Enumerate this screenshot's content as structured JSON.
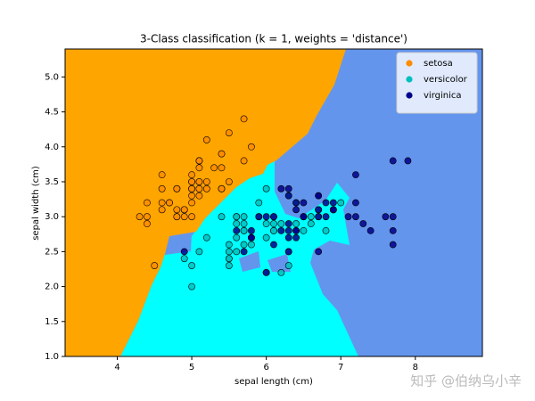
{
  "chart_data": {
    "type": "scatter",
    "title": "3-Class classification (k = 1, weights = 'distance')",
    "x_label": "sepal length (cm)",
    "y_label": "sepal width (cm)",
    "xlim": [
      3.3,
      8.9
    ],
    "ylim": [
      1.0,
      5.4
    ],
    "xticks": [
      4,
      5,
      6,
      7,
      8
    ],
    "yticks": [
      {
        "value": 1,
        "label": "1.0"
      },
      {
        "value": 1.5,
        "label": "1.5"
      },
      {
        "value": 2,
        "label": "2.0"
      },
      {
        "value": 2.5,
        "label": "2.5"
      },
      {
        "value": 3,
        "label": "3.0"
      },
      {
        "value": 3.5,
        "label": "3.5"
      },
      {
        "value": 4,
        "label": "4.0"
      },
      {
        "value": 4.5,
        "label": "4.5"
      },
      {
        "value": 5,
        "label": "5.0"
      }
    ],
    "grid": false,
    "legend": "upper right",
    "watermark": "知乎 @伯纳乌小辛",
    "series": [
      {
        "name": "setosa",
        "color": "#ff8c00",
        "x": [
          5.1,
          4.9,
          4.7,
          4.6,
          5.0,
          5.4,
          4.6,
          5.0,
          4.4,
          4.9,
          5.4,
          4.8,
          4.8,
          4.3,
          5.8,
          5.7,
          5.4,
          5.1,
          5.7,
          5.1,
          5.4,
          5.1,
          4.6,
          5.1,
          4.8,
          5.0,
          5.0,
          5.2,
          5.2,
          4.7,
          4.8,
          5.4,
          5.2,
          5.5,
          4.9,
          5.0,
          5.5,
          4.9,
          4.4,
          5.1,
          5.0,
          4.5,
          4.4,
          5.0,
          5.1,
          4.8,
          5.1,
          4.6,
          5.3,
          5.0
        ],
        "values": [
          3.5,
          3.0,
          3.2,
          3.1,
          3.6,
          3.9,
          3.4,
          3.4,
          2.9,
          3.1,
          3.7,
          3.4,
          3.0,
          3.0,
          4.0,
          4.4,
          3.9,
          3.5,
          3.8,
          3.8,
          3.4,
          3.7,
          3.6,
          3.3,
          3.4,
          3.0,
          3.4,
          3.5,
          3.4,
          3.2,
          3.1,
          3.4,
          4.1,
          4.2,
          3.1,
          3.2,
          3.5,
          3.1,
          3.0,
          3.4,
          3.5,
          2.3,
          3.2,
          3.5,
          3.8,
          3.0,
          3.8,
          3.2,
          3.7,
          3.3
        ]
      },
      {
        "name": "versicolor",
        "color": "#00bfbf",
        "x": [
          7.0,
          6.4,
          6.9,
          5.5,
          6.5,
          5.7,
          6.3,
          4.9,
          6.6,
          5.2,
          5.0,
          5.9,
          6.0,
          6.1,
          5.6,
          6.7,
          5.6,
          5.8,
          6.2,
          5.6,
          5.9,
          6.1,
          6.3,
          6.1,
          6.4,
          6.6,
          6.8,
          6.7,
          6.0,
          5.7,
          5.5,
          5.5,
          5.8,
          6.0,
          5.4,
          6.0,
          6.7,
          6.3,
          5.6,
          5.5,
          5.5,
          6.1,
          5.8,
          5.0,
          5.6,
          5.7,
          5.7,
          6.2,
          5.1,
          5.7
        ],
        "values": [
          3.2,
          3.2,
          3.1,
          2.3,
          2.8,
          2.8,
          3.3,
          2.4,
          2.9,
          2.7,
          2.0,
          3.0,
          2.2,
          2.9,
          2.9,
          3.1,
          3.0,
          2.7,
          2.2,
          2.5,
          3.2,
          2.8,
          2.5,
          2.8,
          2.9,
          3.0,
          2.8,
          3.0,
          2.9,
          2.6,
          2.4,
          2.4,
          2.7,
          2.7,
          3.0,
          3.4,
          3.1,
          2.3,
          3.0,
          2.5,
          2.6,
          3.0,
          2.6,
          2.3,
          2.7,
          3.0,
          2.9,
          2.9,
          2.5,
          2.8
        ]
      },
      {
        "name": "virginica",
        "color": "#00008b",
        "x": [
          6.3,
          5.8,
          7.1,
          6.3,
          6.5,
          7.6,
          4.9,
          7.3,
          6.7,
          7.2,
          6.5,
          6.4,
          6.8,
          5.7,
          5.8,
          6.4,
          6.5,
          7.7,
          7.7,
          6.0,
          6.9,
          5.6,
          7.7,
          6.3,
          6.7,
          7.2,
          6.2,
          6.1,
          6.4,
          7.2,
          7.4,
          7.9,
          6.4,
          6.3,
          6.1,
          7.7,
          6.3,
          6.4,
          6.0,
          6.9,
          6.7,
          6.9,
          5.8,
          6.8,
          6.7,
          6.7,
          6.3,
          6.5,
          6.2,
          5.9
        ],
        "values": [
          3.3,
          2.7,
          3.0,
          2.9,
          3.0,
          3.0,
          2.5,
          2.9,
          2.5,
          3.6,
          3.2,
          2.7,
          3.0,
          2.5,
          2.8,
          3.2,
          3.0,
          3.8,
          2.6,
          2.2,
          3.2,
          2.8,
          2.8,
          2.7,
          3.3,
          3.2,
          2.8,
          3.0,
          2.8,
          3.0,
          2.8,
          3.8,
          2.8,
          2.8,
          2.6,
          3.0,
          3.4,
          3.1,
          3.0,
          3.1,
          3.1,
          3.1,
          2.7,
          3.2,
          3.3,
          3.0,
          2.5,
          3.0,
          3.4,
          3.0
        ]
      }
    ]
  }
}
